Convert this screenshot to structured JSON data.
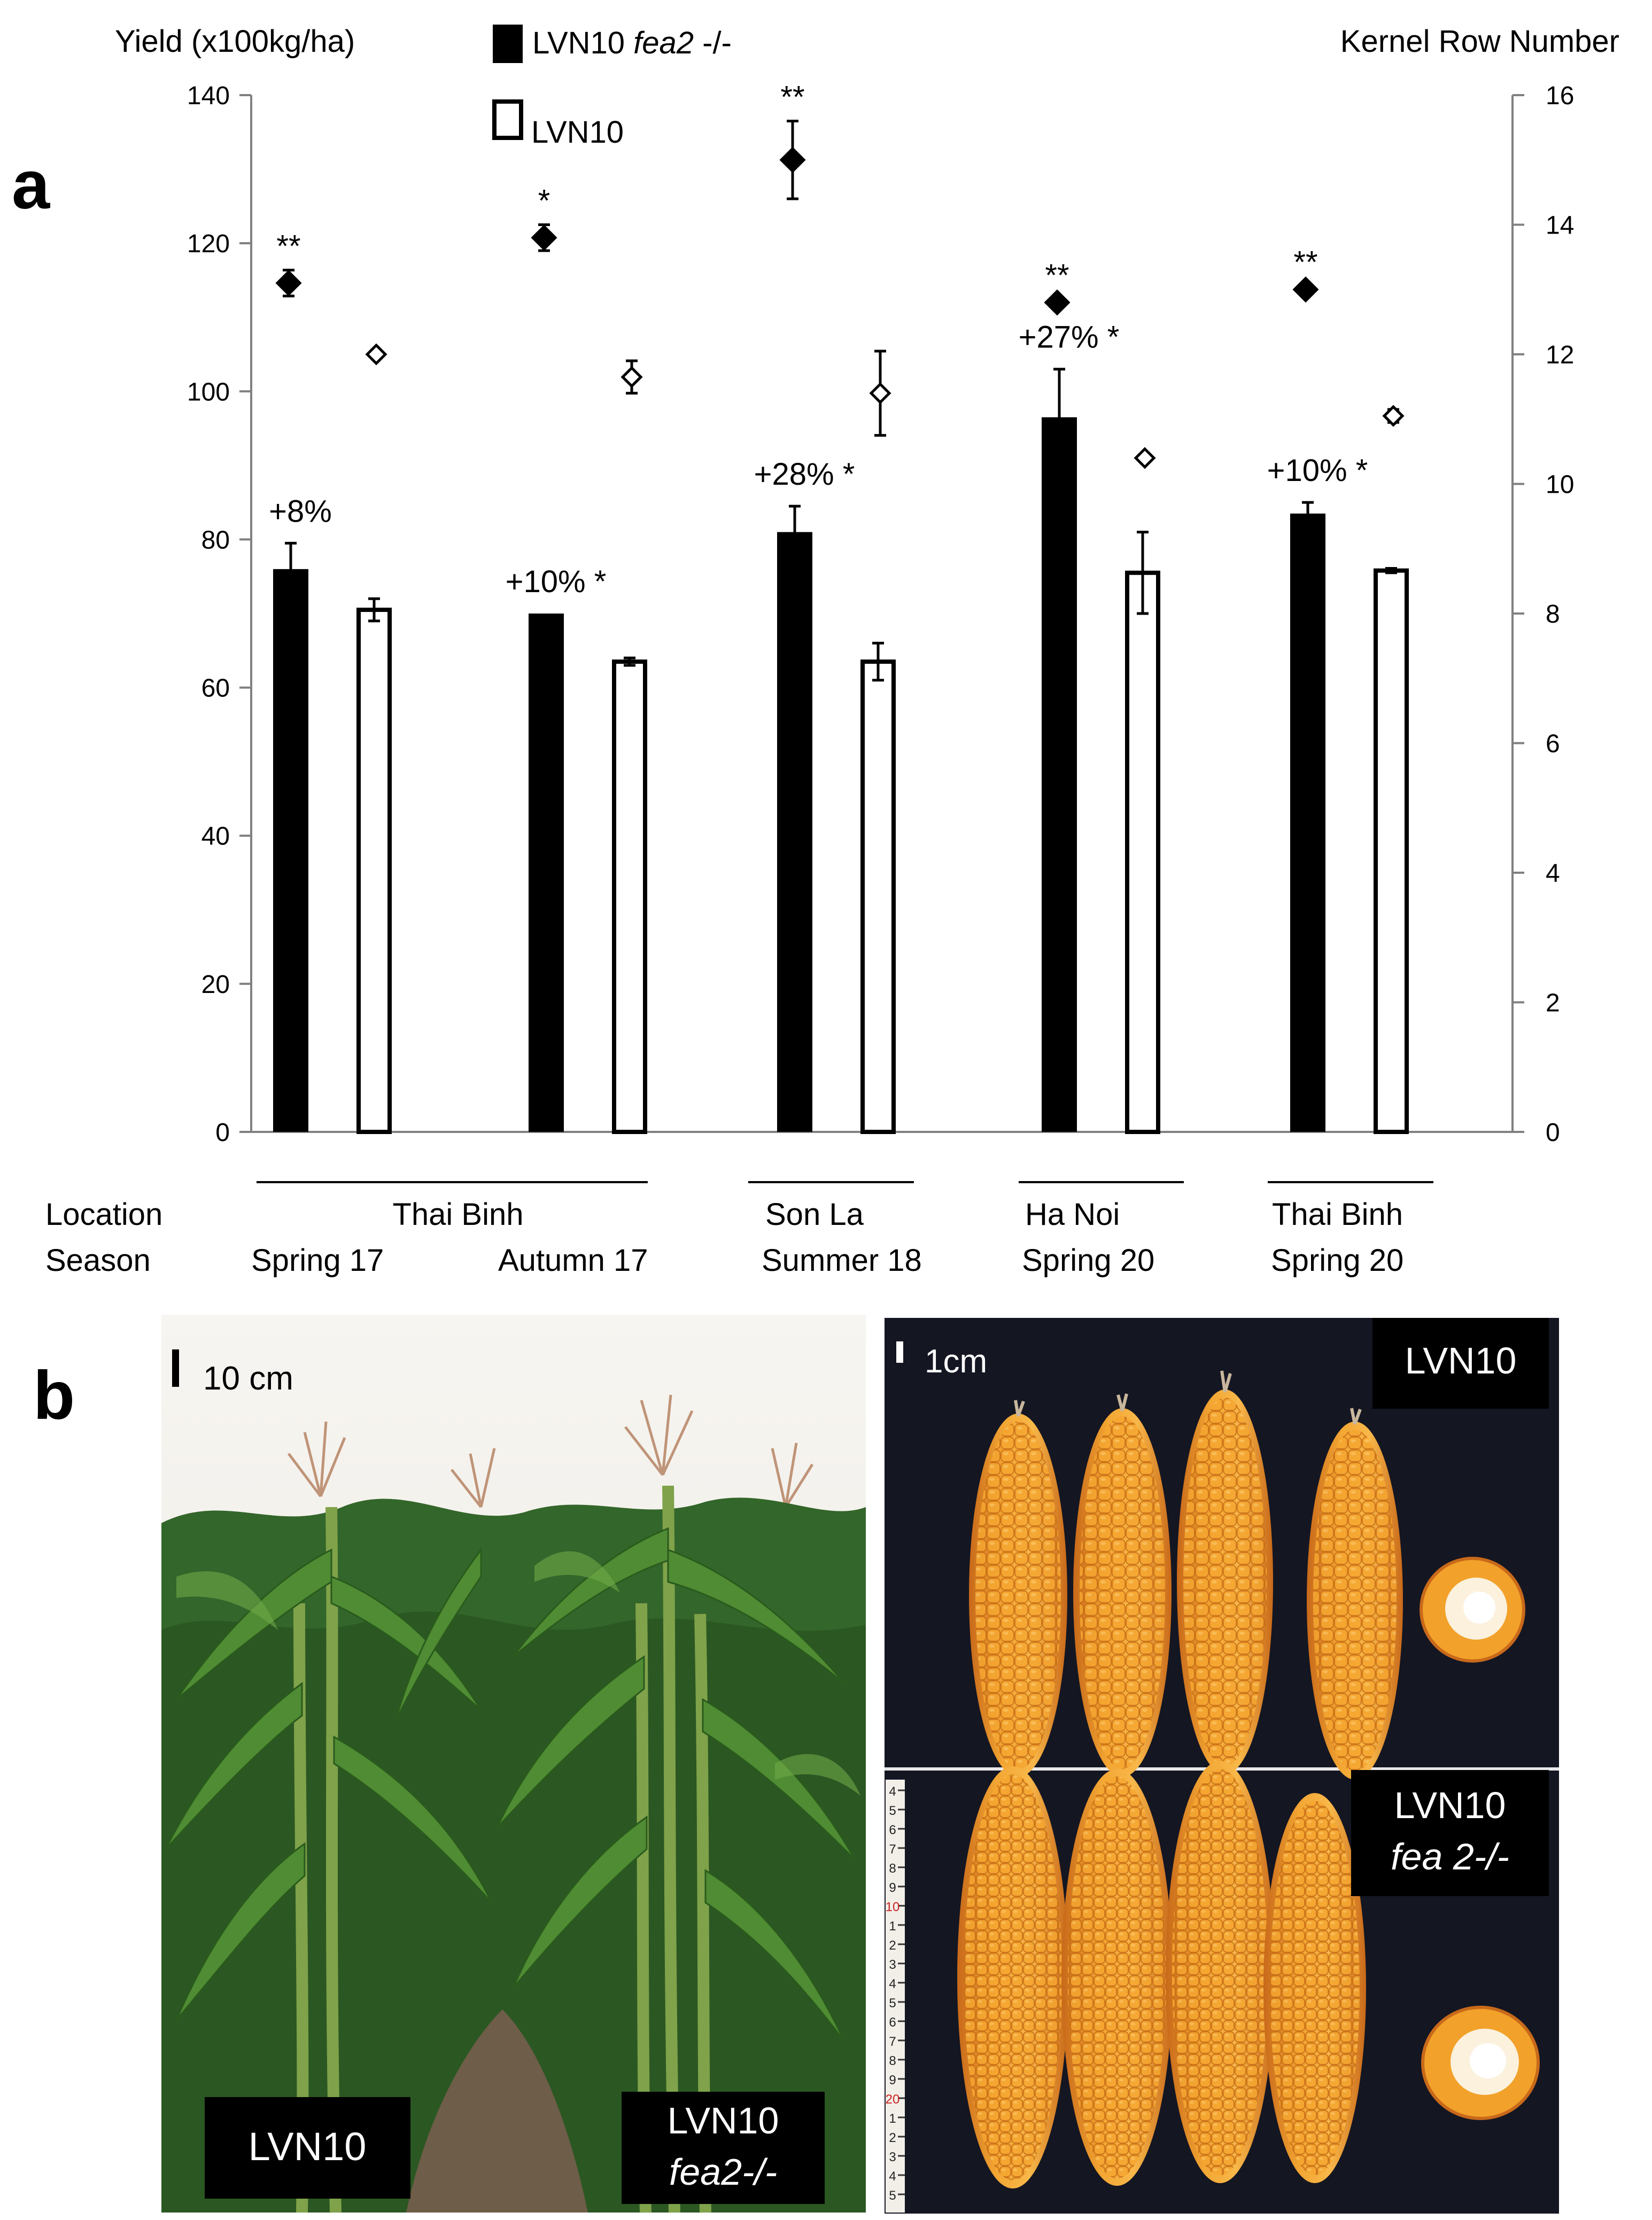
{
  "chart_data": {
    "type": "bar",
    "panel_label": "a",
    "ylabel_left": "Yield (x100kg/ha)",
    "ylabel_right": "Kernel Row Number",
    "ylim_left": [
      0,
      140
    ],
    "yticks_left": [
      "0",
      "20",
      "40",
      "60",
      "80",
      "100",
      "120",
      "140"
    ],
    "ylim_right": [
      0,
      16
    ],
    "yticks_right": [
      "0",
      "2",
      "4",
      "6",
      "8",
      "10",
      "12",
      "14",
      "16"
    ],
    "legend": {
      "mutant": {
        "prefix": "LVN10 ",
        "italic": "fea2",
        "suffix": " -/-"
      },
      "wildtype": "LVN10"
    },
    "location_label": "Location",
    "season_label": "Season",
    "locations": [
      "Thai Binh",
      "Son La",
      "Ha Noi",
      "Thai Binh"
    ],
    "seasons": [
      "Spring 17",
      "Autumn 17",
      "Summer 18",
      "Spring 20",
      "Spring 20"
    ],
    "series": [
      {
        "name": "LVN10 fea2 -/- yield",
        "axis": "left",
        "values": [
          76,
          70,
          81,
          96.5,
          83.5
        ],
        "errors": [
          3.5,
          0,
          3.5,
          6.5,
          1.5
        ]
      },
      {
        "name": "LVN10 yield",
        "axis": "left",
        "values": [
          70.5,
          63.5,
          63.5,
          75.5,
          75.8
        ],
        "errors": [
          1.5,
          0.5,
          2.5,
          5.5,
          0.3
        ]
      },
      {
        "name": "LVN10 fea2 -/- kernel row number",
        "axis": "right",
        "values": [
          13.1,
          13.8,
          15.0,
          12.8,
          13.0
        ],
        "errors": [
          0.2,
          0.2,
          0.6,
          0.05,
          0.05
        ]
      },
      {
        "name": "LVN10 kernel row number",
        "axis": "right",
        "values": [
          12.0,
          11.65,
          11.4,
          10.4,
          11.05
        ],
        "errors": [
          0.05,
          0.25,
          0.65,
          0.05,
          0.1
        ]
      }
    ],
    "bar_annotations": [
      "+8%",
      "+10% *",
      "+28% *",
      "+27% *",
      "+10% *"
    ],
    "row_annotations": [
      "**",
      "*",
      "**",
      "**",
      "**"
    ]
  },
  "panel_b": {
    "label": "b",
    "plant_scale": "10 cm",
    "plant_label_left": "LVN10",
    "plant_label_right_line1": "LVN10",
    "plant_label_right_line2": "fea2-/-",
    "ear_scale": "1cm",
    "ear_label_top": "LVN10",
    "ear_label_bottom_line1": "LVN10",
    "ear_label_bottom_line2": "fea 2-/-",
    "ruler_digits": [
      "4",
      "5",
      "6",
      "7",
      "8",
      "9",
      "10",
      "1",
      "2",
      "3",
      "4",
      "5",
      "6",
      "7",
      "8",
      "9",
      "20",
      "1",
      "2",
      "3",
      "4",
      "5"
    ],
    "colors": {
      "kernel": "#f2a12a",
      "kernel_dark": "#d9801a",
      "sky": "#f4f2ee",
      "leaf": "#3f7a2a",
      "leaf_dark": "#24461a",
      "soil": "#6b5a45",
      "backdrop": "#141622"
    }
  }
}
